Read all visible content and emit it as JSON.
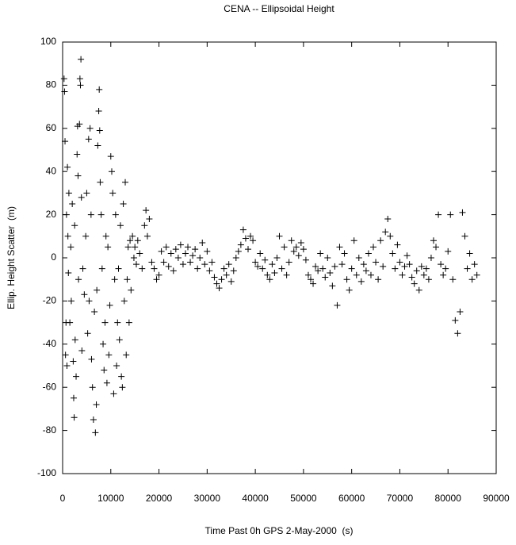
{
  "chart_data": {
    "type": "scatter",
    "title": "CENA -- Ellipsoidal Height",
    "x_label": "Time Past 0h GPS 2-May-2000  (s)",
    "y_label": "Ellip. Height Scatter  (m)",
    "color": "#000000",
    "xlim": [
      0,
      90000
    ],
    "xticks": [
      0,
      10000,
      20000,
      30000,
      40000,
      50000,
      60000,
      70000,
      80000,
      90000
    ],
    "ylim": [
      -100,
      100
    ],
    "yticks": [
      -100,
      -80,
      -60,
      -40,
      -20,
      0,
      20,
      40,
      60,
      80,
      100
    ],
    "x": [
      300,
      400,
      500,
      600,
      700,
      800,
      900,
      1000,
      1100,
      1200,
      1300,
      1500,
      1700,
      1800,
      2000,
      2200,
      2300,
      2400,
      2500,
      2600,
      2800,
      3000,
      3100,
      3200,
      3300,
      3500,
      3600,
      3700,
      3800,
      3900,
      4000,
      4200,
      4500,
      4800,
      5000,
      5200,
      5400,
      5500,
      5700,
      5900,
      6000,
      6200,
      6400,
      6600,
      6800,
      7000,
      7100,
      7300,
      7500,
      7600,
      7700,
      7800,
      8000,
      8200,
      8400,
      8600,
      8800,
      9000,
      9200,
      9400,
      9600,
      9800,
      10000,
      10200,
      10400,
      10600,
      10800,
      11000,
      11200,
      11400,
      11600,
      11800,
      12000,
      12200,
      12400,
      12600,
      12800,
      13000,
      13200,
      13400,
      13600,
      13800,
      14000,
      14200,
      14500,
      14800,
      15000,
      15300,
      15600,
      16000,
      16500,
      17000,
      17300,
      17600,
      18000,
      18500,
      19000,
      19500,
      20000,
      20500,
      21000,
      21500,
      22000,
      22500,
      23000,
      23500,
      24000,
      24500,
      25000,
      25500,
      26000,
      26500,
      27000,
      27500,
      28000,
      28500,
      29000,
      29500,
      30000,
      30500,
      31000,
      31500,
      32000,
      32500,
      33000,
      33500,
      34000,
      34500,
      35000,
      35500,
      36000,
      36500,
      37000,
      37500,
      38000,
      38500,
      39000,
      39500,
      40000,
      40500,
      41000,
      41500,
      42000,
      42500,
      43000,
      43500,
      44000,
      44500,
      45000,
      45500,
      46000,
      46500,
      47000,
      47500,
      48000,
      48500,
      49000,
      49500,
      50000,
      50500,
      51000,
      51500,
      52000,
      52500,
      53000,
      53500,
      54000,
      54500,
      55000,
      55500,
      56000,
      56500,
      57000,
      57500,
      58000,
      58500,
      59000,
      59500,
      60000,
      60500,
      61000,
      61500,
      62000,
      62500,
      63000,
      63500,
      64000,
      64500,
      65000,
      65500,
      66000,
      66500,
      67000,
      67500,
      68000,
      68500,
      69000,
      69500,
      70000,
      70500,
      71000,
      71500,
      72000,
      72500,
      73000,
      73500,
      74000,
      74500,
      75000,
      75500,
      76000,
      76500,
      77000,
      77500,
      78000,
      78500,
      79000,
      79500,
      80000,
      80500,
      81000,
      81500,
      82000,
      82500,
      83000,
      83500,
      84000,
      84500,
      85000,
      85500,
      86000
    ],
    "values": [
      83,
      77,
      54,
      -45,
      -30,
      20,
      -50,
      42,
      10,
      -7,
      30,
      -30,
      5,
      -20,
      25,
      -48,
      -65,
      -74,
      15,
      -38,
      -55,
      48,
      61,
      38,
      -10,
      62,
      83,
      80,
      92,
      28,
      -43,
      -5,
      -17,
      10,
      30,
      -35,
      55,
      -20,
      60,
      20,
      -47,
      -60,
      -75,
      -25,
      -81,
      -68,
      -15,
      52,
      68,
      78,
      59,
      35,
      20,
      -5,
      -40,
      -52,
      -30,
      10,
      -58,
      5,
      -45,
      -22,
      47,
      40,
      30,
      -63,
      -10,
      20,
      -50,
      -30,
      -5,
      -38,
      15,
      -55,
      -60,
      25,
      -20,
      35,
      -45,
      -10,
      5,
      -30,
      8,
      -15,
      10,
      0,
      5,
      -3,
      8,
      2,
      -5,
      15,
      22,
      10,
      18,
      -2,
      -5,
      -10,
      -8,
      3,
      -2,
      5,
      -4,
      2,
      -6,
      4,
      0,
      6,
      -3,
      2,
      5,
      -2,
      1,
      4,
      -5,
      0,
      7,
      -3,
      3,
      -6,
      -2,
      -9,
      -12,
      -14,
      -10,
      -5,
      -8,
      -3,
      -11,
      -6,
      0,
      3,
      6,
      13,
      9,
      4,
      10,
      8,
      -2,
      -4,
      2,
      -5,
      -1,
      -8,
      -10,
      -3,
      -7,
      0,
      10,
      -5,
      5,
      -8,
      -2,
      8,
      3,
      5,
      1,
      7,
      4,
      -1,
      -8,
      -10,
      -12,
      -4,
      -6,
      2,
      -5,
      -9,
      0,
      -7,
      -13,
      -4,
      -22,
      5,
      -3,
      2,
      -10,
      -15,
      -5,
      8,
      -8,
      0,
      -11,
      -3,
      -6,
      2,
      -8,
      5,
      -2,
      -10,
      8,
      -4,
      12,
      18,
      10,
      2,
      -5,
      6,
      -2,
      -8,
      -4,
      1,
      -3,
      -9,
      -12,
      -6,
      -15,
      -4,
      -8,
      -5,
      -10,
      0,
      8,
      5,
      20,
      -3,
      -8,
      -5,
      3,
      20,
      -10,
      -29,
      -35,
      -25,
      21,
      10,
      -5,
      2,
      -10,
      -3,
      -8
    ]
  }
}
